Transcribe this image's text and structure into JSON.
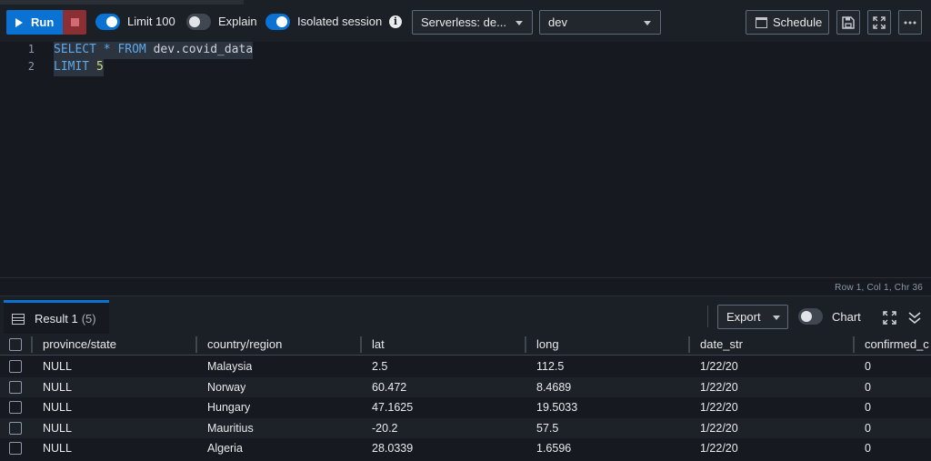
{
  "toolbar": {
    "run_label": "Run",
    "toggles": {
      "limit": {
        "label": "Limit 100",
        "on": true
      },
      "explain": {
        "label": "Explain",
        "on": false
      },
      "isolated": {
        "label": "Isolated session",
        "on": true
      }
    },
    "workgroup_select": "Serverless: de...",
    "database_select": "dev",
    "schedule_label": "Schedule"
  },
  "editor": {
    "lines": [
      {
        "num": "1",
        "tokens": {
          "kw1": "SELECT",
          "star": "*",
          "kw2": "FROM",
          "table": "dev.covid_data"
        }
      },
      {
        "num": "2",
        "tokens": {
          "kw": "LIMIT",
          "val": "5"
        }
      }
    ],
    "status": "Row 1,  Col 1,  Chr 36"
  },
  "results": {
    "tab_label": "Result 1",
    "tab_count": "(5)",
    "export_label": "Export",
    "chart_label": "Chart",
    "chart_on": false,
    "columns": [
      "province/state",
      "country/region",
      "lat",
      "long",
      "date_str",
      "confirmed_c"
    ],
    "rows": [
      [
        "NULL",
        "Malaysia",
        "2.5",
        "112.5",
        "1/22/20",
        "0"
      ],
      [
        "NULL",
        "Norway",
        "60.472",
        "8.4689",
        "1/22/20",
        "0"
      ],
      [
        "NULL",
        "Hungary",
        "47.1625",
        "19.5033",
        "1/22/20",
        "0"
      ],
      [
        "NULL",
        "Mauritius",
        "-20.2",
        "57.5",
        "1/22/20",
        "0"
      ],
      [
        "NULL",
        "Algeria",
        "28.0339",
        "1.6596",
        "1/22/20",
        "0"
      ]
    ]
  },
  "colors": {
    "accent": "#0972d3",
    "stop": "#8a2f34",
    "background": "#16191f"
  }
}
